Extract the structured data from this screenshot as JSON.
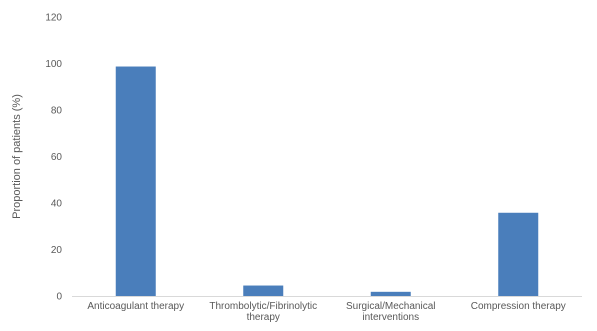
{
  "chart_data": {
    "type": "bar",
    "title": "",
    "xlabel": "",
    "ylabel": "Proportion of patients (%)",
    "ylim": [
      0,
      120
    ],
    "yticks": [
      0,
      20,
      40,
      60,
      80,
      100,
      120
    ],
    "grid": false,
    "legend": "none",
    "categories": [
      "Anticoagulant therapy",
      "Thrombolytic/Fibrinolytic therapy",
      "Surgical/Mechanical interventions",
      "Compression therapy"
    ],
    "category_lines": [
      [
        "Anticoagulant therapy"
      ],
      [
        "Thrombolytic/Fibrinolytic",
        "therapy"
      ],
      [
        "Surgical/Mechanical",
        "interventions"
      ],
      [
        "Compression therapy"
      ]
    ],
    "values": [
      98.7,
      4.5,
      1.8,
      35.8
    ],
    "colors": {
      "bar": "#4a7ebb",
      "axis": "#d9d9d9",
      "text": "#595959"
    }
  }
}
